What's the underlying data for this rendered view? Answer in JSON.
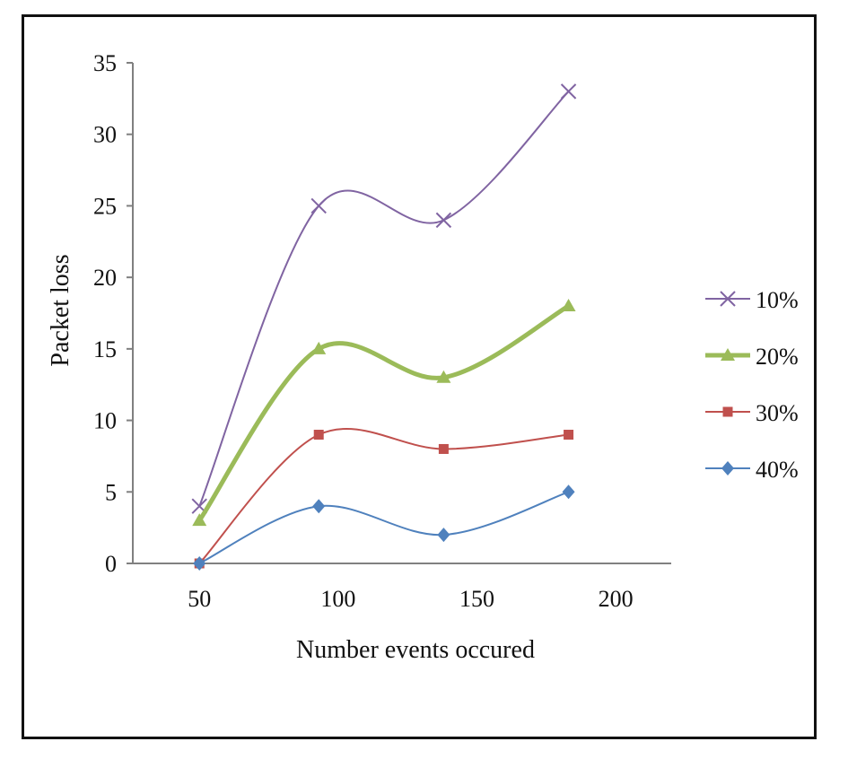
{
  "chart_data": {
    "type": "line",
    "x": [
      50,
      93,
      138,
      183
    ],
    "xticks": [
      50,
      100,
      150,
      200
    ],
    "yticks": [
      0,
      5,
      10,
      15,
      20,
      25,
      30,
      35
    ],
    "xlim": [
      26,
      220
    ],
    "ylim": [
      0,
      35
    ],
    "xlabel": "Number events  occured",
    "ylabel": "Packet  loss",
    "grid": false,
    "legend_position": "right",
    "series": [
      {
        "name": "10%",
        "values": [
          4,
          25,
          24,
          33
        ],
        "color": "#8064a2",
        "marker": "x",
        "width": 2
      },
      {
        "name": "20%",
        "values": [
          3,
          15,
          13,
          18
        ],
        "color": "#9bbb59",
        "marker": "triangle",
        "width": 5
      },
      {
        "name": "30%",
        "values": [
          0,
          9,
          8,
          9
        ],
        "color": "#c0504d",
        "marker": "square",
        "width": 2
      },
      {
        "name": "40%",
        "values": [
          0,
          4,
          2,
          5
        ],
        "color": "#4f81bd",
        "marker": "diamond",
        "width": 2
      }
    ]
  }
}
